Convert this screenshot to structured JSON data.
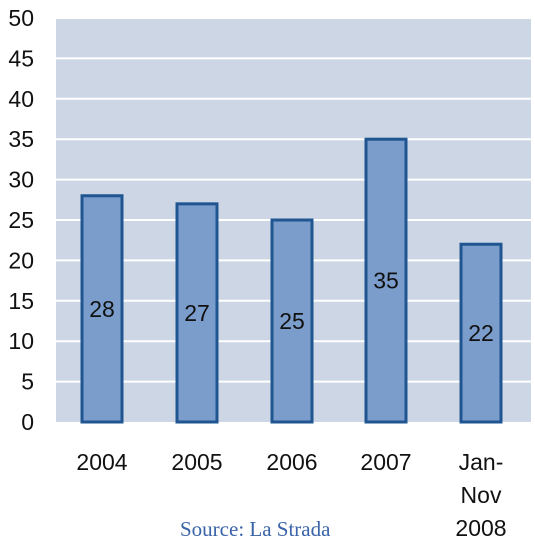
{
  "chart_data": {
    "type": "bar",
    "categories": [
      [
        "2004"
      ],
      [
        "2005"
      ],
      [
        "2006"
      ],
      [
        "2007"
      ],
      [
        "Jan-",
        "Nov",
        "2008"
      ]
    ],
    "values": [
      28,
      27,
      25,
      35,
      22
    ],
    "data_labels": [
      "28",
      "27",
      "25",
      "35",
      "22"
    ],
    "title": "",
    "xlabel": "",
    "ylabel": "",
    "ylim": [
      0,
      50
    ],
    "yticks": [
      "0",
      "5",
      "10",
      "15",
      "20",
      "25",
      "30",
      "35",
      "40",
      "45",
      "50"
    ],
    "grid": true,
    "legend": "none",
    "colors": {
      "plot_background": "#cdd6e4",
      "gridline": "#ffffff",
      "bar_fill": "#7b9dcc",
      "bar_stroke": "#1f5591"
    }
  },
  "source": "Source: La Strada"
}
